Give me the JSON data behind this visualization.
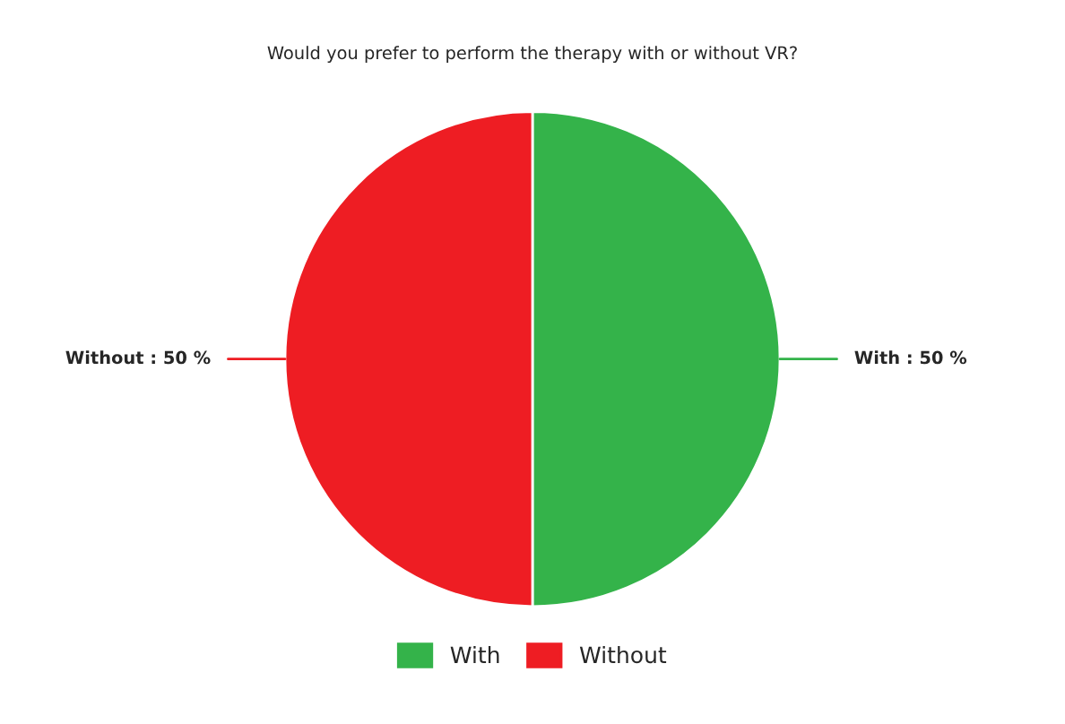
{
  "chart_data": {
    "type": "pie",
    "title": "Would you prefer to perform the therapy with or without VR?",
    "categories": [
      "With",
      "Without"
    ],
    "values": [
      50,
      50
    ],
    "colors": [
      "#34b34a",
      "#ee1d23"
    ],
    "value_labels": [
      "With : 50 %",
      "Without : 50 %"
    ],
    "legend": "bottom"
  }
}
